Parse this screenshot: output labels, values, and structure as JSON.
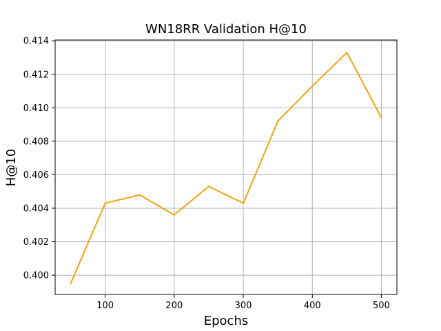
{
  "chart_data": {
    "type": "line",
    "title": "WN18RR Validation H@10",
    "xlabel": "Epochs",
    "ylabel": "H@10",
    "xlim": [
      27.5,
      522.5
    ],
    "ylim": [
      0.39885,
      0.41405
    ],
    "grid": true,
    "xticks": [
      100,
      200,
      300,
      400,
      500
    ],
    "xtick_labels": [
      "100",
      "200",
      "300",
      "400",
      "500"
    ],
    "yticks": [
      0.4,
      0.402,
      0.404,
      0.406,
      0.408,
      0.41,
      0.412,
      0.414
    ],
    "ytick_labels": [
      "0.400",
      "0.402",
      "0.404",
      "0.406",
      "0.408",
      "0.410",
      "0.412",
      "0.414"
    ],
    "series": [
      {
        "color": "#f5a30f",
        "x": [
          50,
          100,
          150,
          200,
          250,
          300,
          350,
          400,
          450,
          500
        ],
        "y": [
          0.3995,
          0.4043,
          0.4048,
          0.4036,
          0.4053,
          0.4043,
          0.4092,
          0.4113,
          0.4133,
          0.4094
        ]
      }
    ]
  }
}
